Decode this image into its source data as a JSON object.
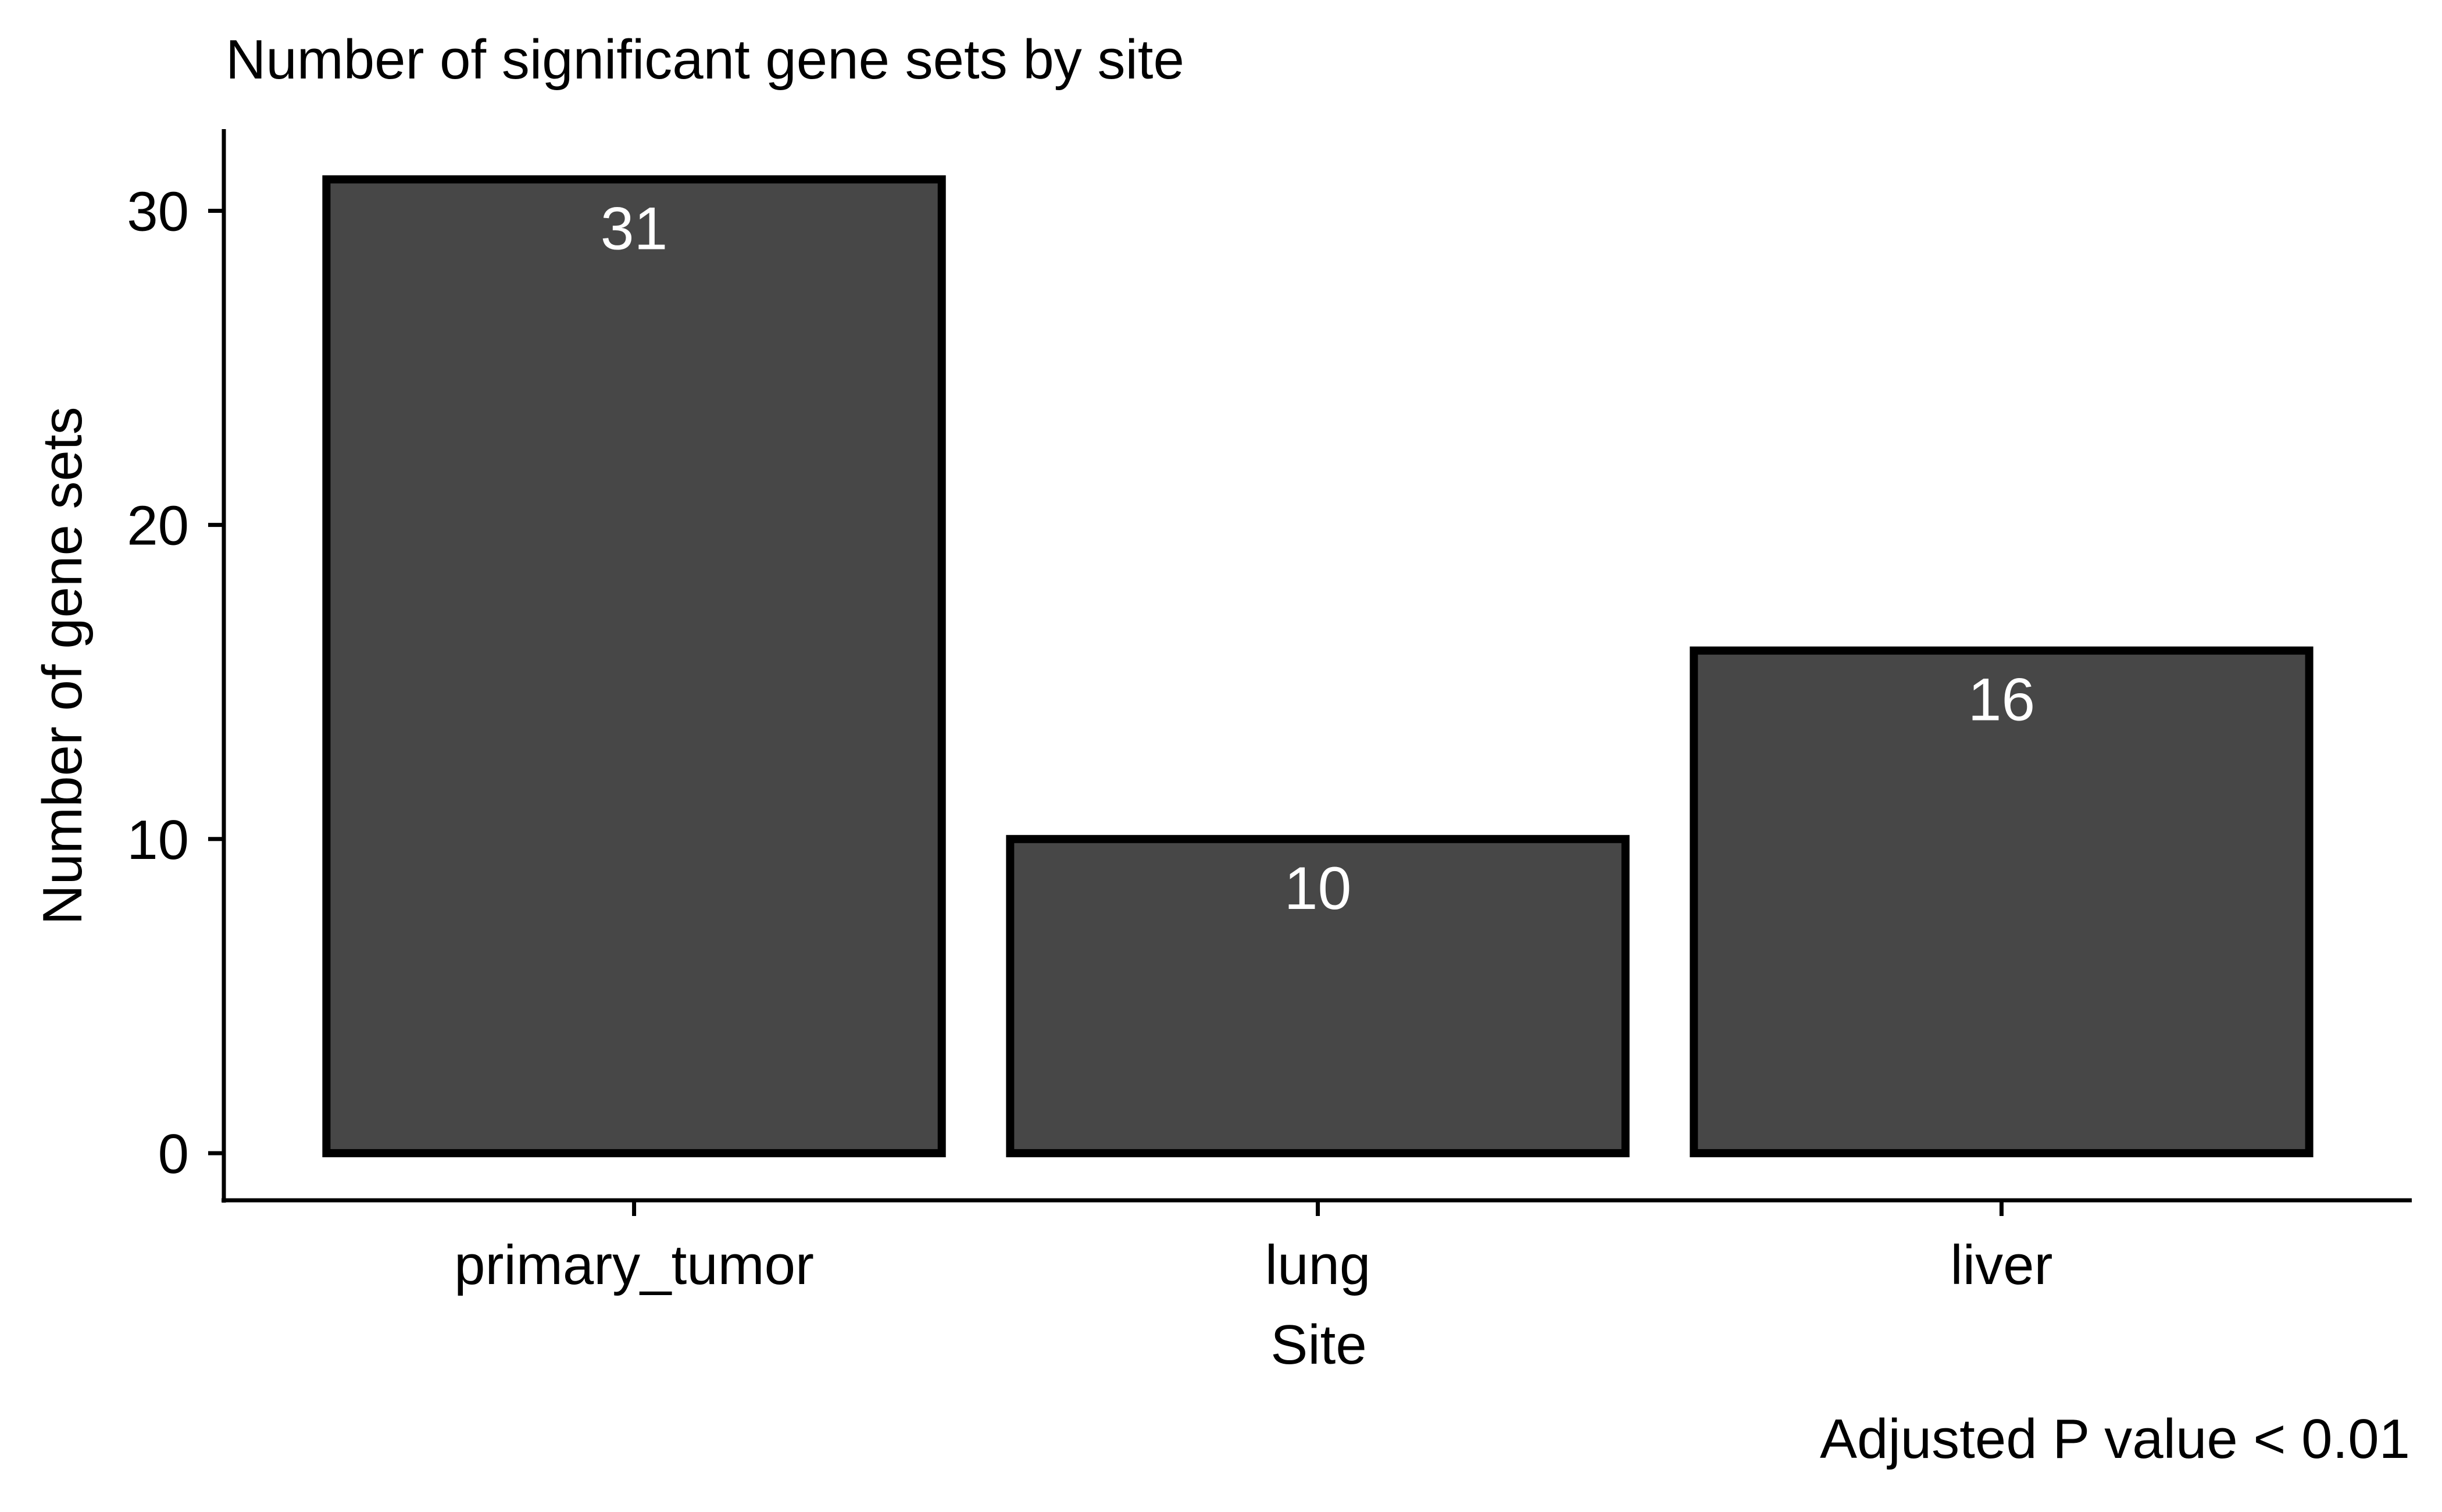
{
  "chart_data": {
    "type": "bar",
    "title": "Number of significant gene sets by site",
    "xlabel": "Site",
    "ylabel": "Number of gene sets",
    "caption": "Adjusted P value < 0.01",
    "categories": [
      "primary_tumor",
      "lung",
      "liver"
    ],
    "values": [
      31,
      10,
      16
    ],
    "data_labels": [
      "31",
      "10",
      "16"
    ],
    "y_ticks": [
      0,
      10,
      20,
      30
    ],
    "ylim": [
      -1.5,
      32.6
    ],
    "grid": false,
    "legend": "none",
    "colors": {
      "bar_fill": "#474747",
      "bar_outline": "#000000",
      "label_text": "#ffffff"
    }
  }
}
